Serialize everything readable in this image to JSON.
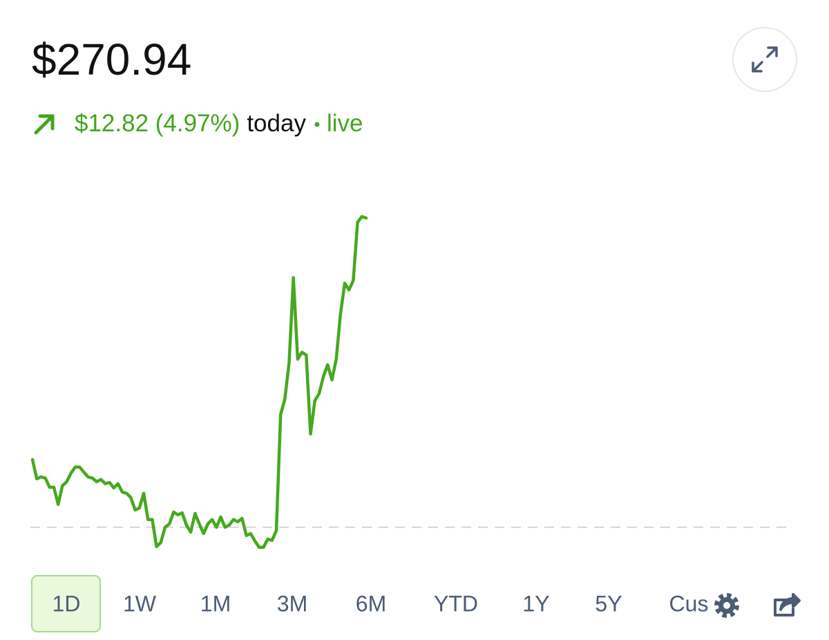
{
  "header": {
    "price": "$270.94",
    "change": "$12.82 (4.97%)",
    "period": "today",
    "status": "live"
  },
  "chart_data": {
    "type": "line",
    "color": "#46a81f",
    "reference": 258.12,
    "ylim": [
      257.0,
      271.5
    ],
    "values": [
      260.93,
      260.13,
      260.21,
      260.16,
      259.78,
      259.78,
      259.07,
      259.84,
      260.01,
      260.36,
      260.62,
      260.62,
      260.41,
      260.21,
      260.16,
      260.01,
      260.1,
      259.93,
      259.98,
      259.75,
      259.93,
      259.58,
      259.53,
      259.35,
      258.84,
      258.92,
      259.53,
      258.44,
      258.44,
      257.32,
      257.49,
      258.12,
      258.26,
      258.75,
      258.64,
      258.72,
      258.21,
      257.92,
      258.69,
      258.26,
      257.86,
      258.26,
      258.44,
      258.12,
      258.55,
      258.12,
      258.21,
      258.44,
      258.35,
      258.49,
      257.78,
      257.86,
      257.55,
      257.29,
      257.29,
      257.63,
      257.58,
      257.98,
      262.79,
      263.43,
      264.95,
      268.47,
      265.09,
      265.38,
      265.26,
      261.99,
      263.37,
      263.66,
      264.37,
      264.86,
      264.23,
      265.09,
      266.95,
      268.24,
      267.96,
      268.36,
      270.77,
      271.0,
      270.94
    ]
  },
  "ranges": [
    "1D",
    "1W",
    "1M",
    "3M",
    "6M",
    "YTD",
    "1Y",
    "5Y",
    "Cus"
  ]
}
